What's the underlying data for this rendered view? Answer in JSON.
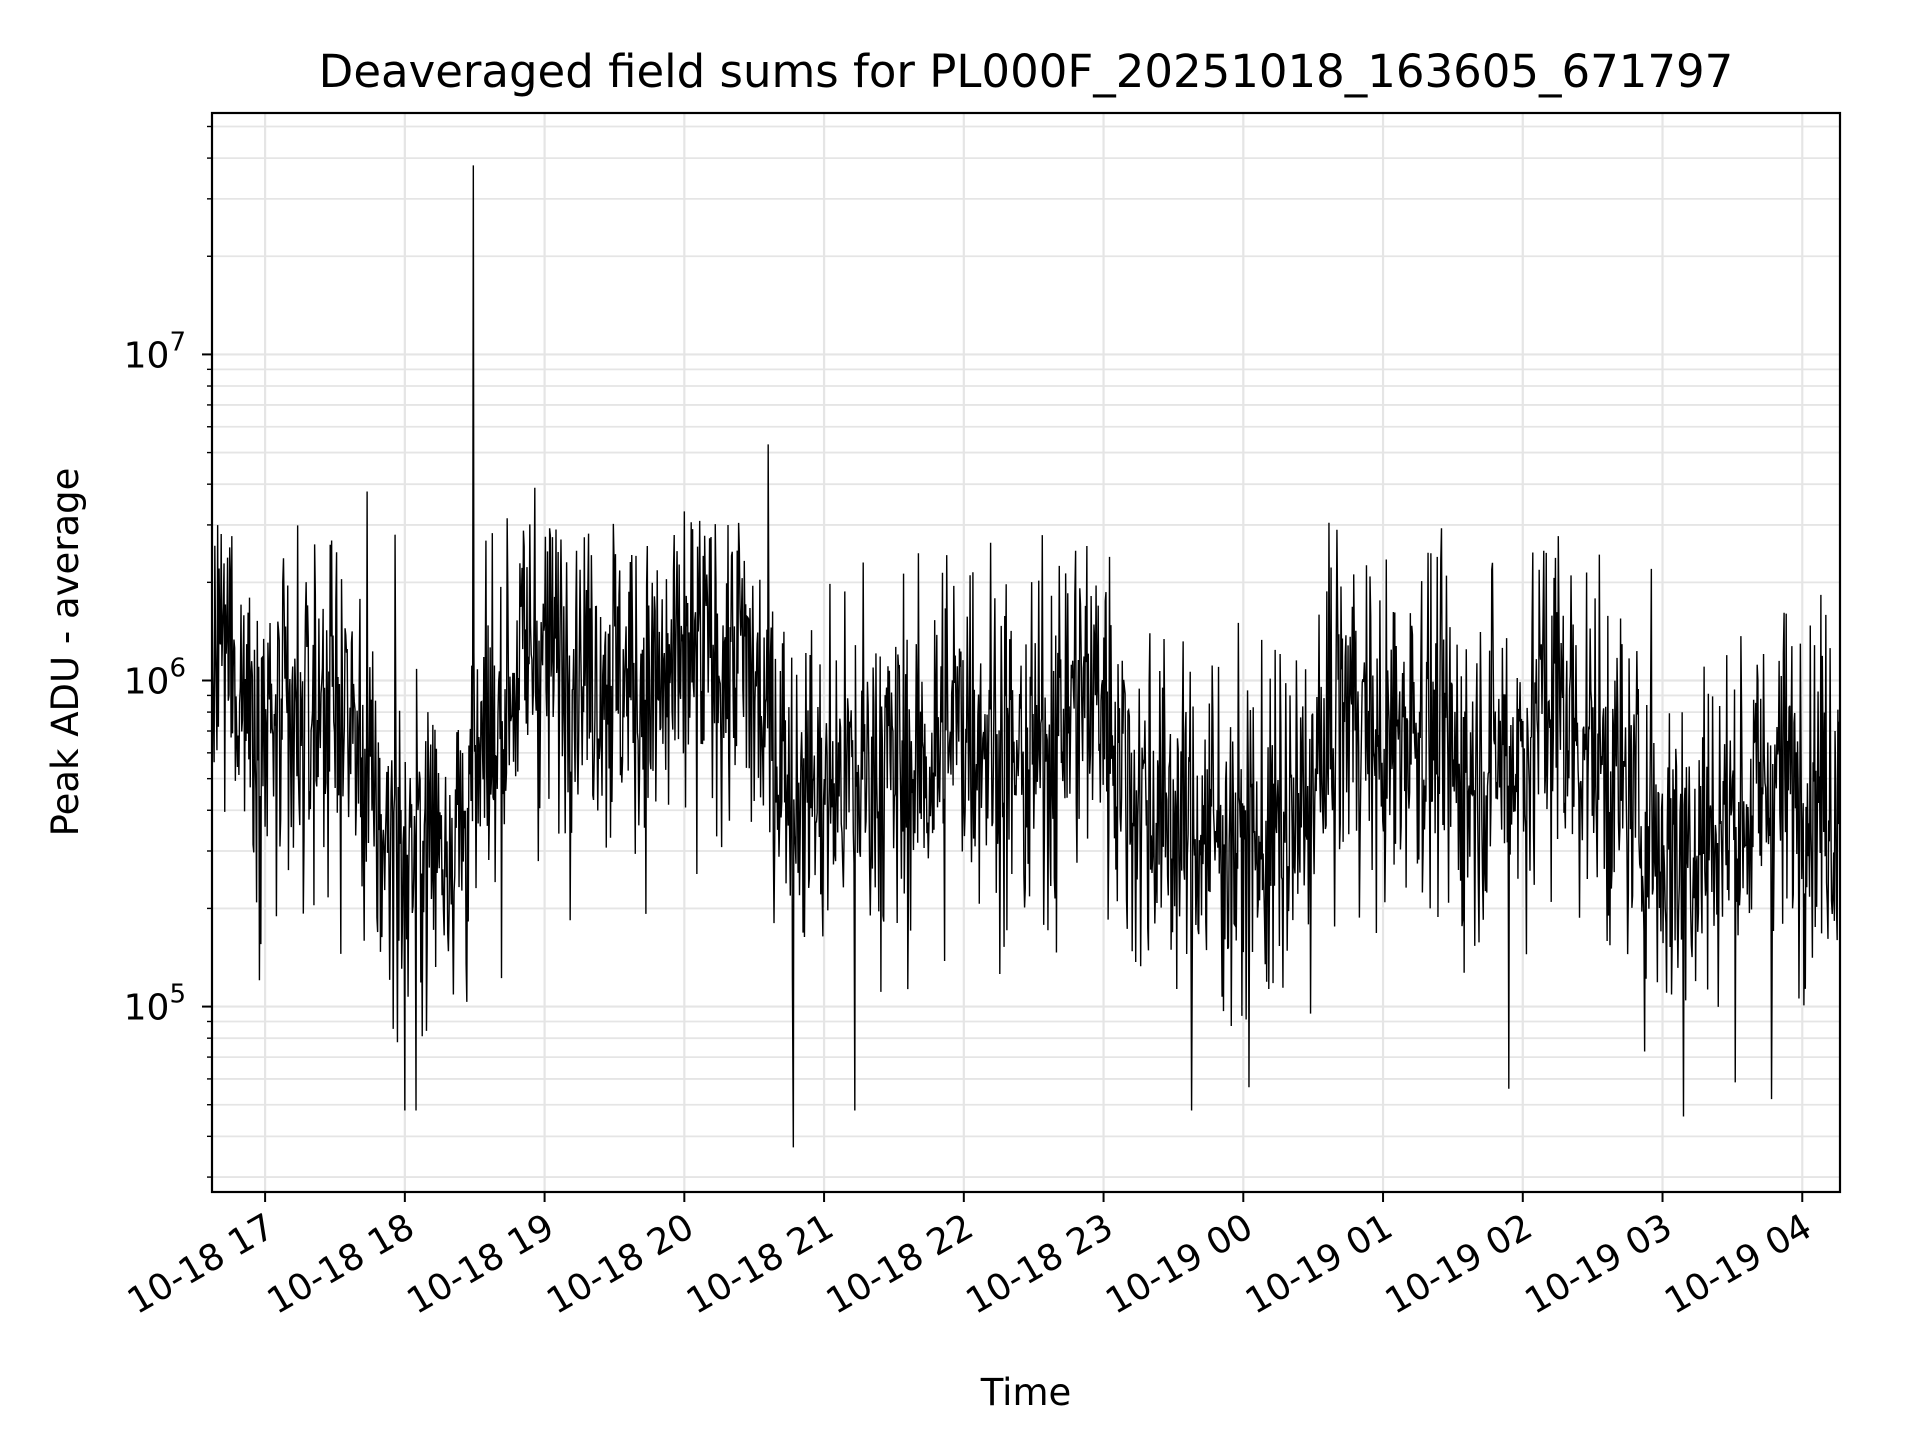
{
  "chart_data": {
    "type": "line",
    "title": "Deaveraged field sums for PL000F_20251018_163605_671797",
    "xlabel": "Time",
    "ylabel": "Peak ADU - average",
    "yscale": "log",
    "ylim": [
      27000,
      55000000
    ],
    "xlim_hours": [
      16.62,
      28.27
    ],
    "grid": true,
    "line_color": "#000000",
    "grid_color": "#e5e5e5",
    "x_ticks": [
      {
        "hour": 17,
        "label": "10-18 17"
      },
      {
        "hour": 18,
        "label": "10-18 18"
      },
      {
        "hour": 19,
        "label": "10-18 19"
      },
      {
        "hour": 20,
        "label": "10-18 20"
      },
      {
        "hour": 21,
        "label": "10-18 21"
      },
      {
        "hour": 22,
        "label": "10-18 22"
      },
      {
        "hour": 23,
        "label": "10-18 23"
      },
      {
        "hour": 24,
        "label": "10-19 00"
      },
      {
        "hour": 25,
        "label": "10-19 01"
      },
      {
        "hour": 26,
        "label": "10-19 02"
      },
      {
        "hour": 27,
        "label": "10-19 03"
      },
      {
        "hour": 28,
        "label": "10-19 04"
      }
    ],
    "y_ticks": [
      {
        "value": 100000,
        "base": "10",
        "exp": "5"
      },
      {
        "value": 1000000,
        "base": "10",
        "exp": "6"
      },
      {
        "value": 10000000,
        "base": "10",
        "exp": "7"
      }
    ],
    "series": [
      {
        "name": "Peak ADU - average",
        "baseline": [
          [
            16.62,
            1200000
          ],
          [
            16.8,
            1100000
          ],
          [
            17.0,
            700000
          ],
          [
            17.2,
            600000
          ],
          [
            17.4,
            900000
          ],
          [
            17.6,
            800000
          ],
          [
            17.8,
            350000
          ],
          [
            18.0,
            300000
          ],
          [
            18.2,
            330000
          ],
          [
            18.4,
            350000
          ],
          [
            18.6,
            600000
          ],
          [
            18.8,
            1100000
          ],
          [
            19.0,
            1200000
          ],
          [
            19.2,
            1250000
          ],
          [
            19.4,
            1100000
          ],
          [
            19.6,
            1000000
          ],
          [
            19.8,
            900000
          ],
          [
            20.0,
            1000000
          ],
          [
            20.2,
            1200000
          ],
          [
            20.4,
            1200000
          ],
          [
            20.6,
            700000
          ],
          [
            20.8,
            500000
          ],
          [
            21.0,
            450000
          ],
          [
            21.2,
            500000
          ],
          [
            21.4,
            550000
          ],
          [
            21.6,
            500000
          ],
          [
            21.8,
            600000
          ],
          [
            22.0,
            800000
          ],
          [
            22.2,
            700000
          ],
          [
            22.4,
            500000
          ],
          [
            22.6,
            650000
          ],
          [
            22.8,
            900000
          ],
          [
            23.0,
            900000
          ],
          [
            23.2,
            450000
          ],
          [
            23.4,
            400000
          ],
          [
            23.6,
            350000
          ],
          [
            23.8,
            350000
          ],
          [
            24.0,
            300000
          ],
          [
            24.2,
            320000
          ],
          [
            24.4,
            350000
          ],
          [
            24.6,
            600000
          ],
          [
            24.8,
            900000
          ],
          [
            25.0,
            550000
          ],
          [
            25.2,
            800000
          ],
          [
            25.4,
            650000
          ],
          [
            25.6,
            500000
          ],
          [
            25.8,
            600000
          ],
          [
            26.0,
            600000
          ],
          [
            26.2,
            900000
          ],
          [
            26.4,
            700000
          ],
          [
            26.6,
            550000
          ],
          [
            26.8,
            400000
          ],
          [
            27.0,
            300000
          ],
          [
            27.2,
            320000
          ],
          [
            27.4,
            350000
          ],
          [
            27.6,
            400000
          ],
          [
            27.8,
            500000
          ],
          [
            28.0,
            500000
          ],
          [
            28.27,
            450000
          ]
        ],
        "spikes_high": [
          [
            17.73,
            3800000
          ],
          [
            17.93,
            2800000
          ],
          [
            18.49,
            38000000
          ],
          [
            18.93,
            3900000
          ],
          [
            20.0,
            3300000
          ],
          [
            20.6,
            5300000
          ],
          [
            21.28,
            2300000
          ],
          [
            22.8,
            2500000
          ],
          [
            24.67,
            2900000
          ],
          [
            26.15,
            2500000
          ],
          [
            26.92,
            2200000
          ]
        ],
        "spikes_low": [
          [
            18.0,
            48000
          ],
          [
            18.08,
            48000
          ],
          [
            20.78,
            37000
          ],
          [
            21.22,
            48000
          ],
          [
            23.63,
            48000
          ],
          [
            25.9,
            56000
          ],
          [
            27.15,
            46000
          ],
          [
            27.78,
            52000
          ]
        ]
      }
    ]
  }
}
